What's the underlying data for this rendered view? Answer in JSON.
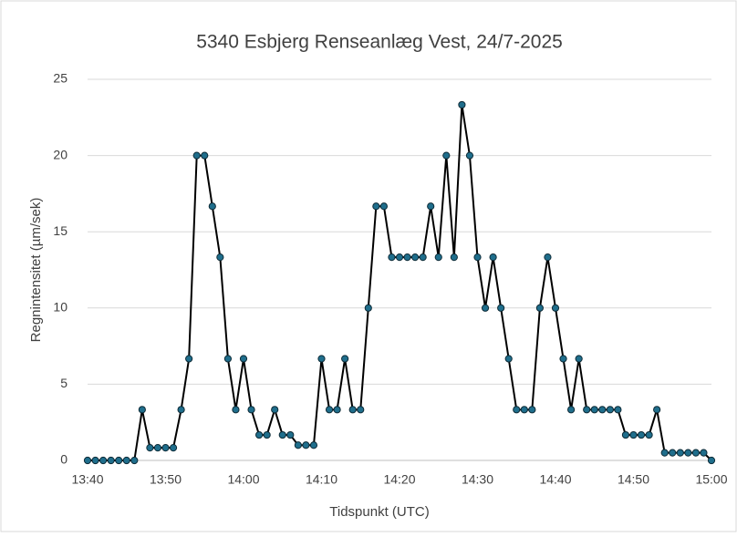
{
  "chart_data": {
    "type": "line",
    "title": "5340 Esbjerg Renseanlæg Vest, 24/7-2025",
    "x_label": "Tidspunkt (UTC)",
    "y_label": "Regnintensitet (µm/sek)",
    "x": [
      "13:40",
      "13:41",
      "13:42",
      "13:43",
      "13:44",
      "13:45",
      "13:46",
      "13:47",
      "13:48",
      "13:49",
      "13:50",
      "13:51",
      "13:52",
      "13:53",
      "13:54",
      "13:55",
      "13:56",
      "13:57",
      "13:58",
      "13:59",
      "14:00",
      "14:01",
      "14:02",
      "14:03",
      "14:04",
      "14:05",
      "14:06",
      "14:07",
      "14:08",
      "14:09",
      "14:10",
      "14:11",
      "14:12",
      "14:13",
      "14:14",
      "14:15",
      "14:16",
      "14:17",
      "14:18",
      "14:19",
      "14:20",
      "14:21",
      "14:22",
      "14:23",
      "14:24",
      "14:25",
      "14:26",
      "14:27",
      "14:28",
      "14:29",
      "14:30",
      "14:31",
      "14:32",
      "14:33",
      "14:34",
      "14:35",
      "14:36",
      "14:37",
      "14:38",
      "14:39",
      "14:40",
      "14:41",
      "14:42",
      "14:43",
      "14:44",
      "14:45",
      "14:46",
      "14:47",
      "14:48",
      "14:49",
      "14:50",
      "14:51",
      "14:52",
      "14:53",
      "14:54",
      "14:55",
      "14:56",
      "14:57",
      "14:58",
      "14:59",
      "15:00"
    ],
    "series": [
      {
        "name": "Regnintensitet",
        "color": "#1f6e8c",
        "values": [
          0,
          0,
          0,
          0,
          0,
          0,
          0,
          3.33,
          0.83,
          0.83,
          0.83,
          0.83,
          3.33,
          6.67,
          20,
          20,
          16.67,
          13.33,
          6.67,
          3.33,
          6.67,
          3.33,
          1.67,
          1.67,
          3.33,
          1.67,
          1.67,
          1,
          1,
          1,
          6.67,
          3.33,
          3.33,
          6.67,
          3.33,
          3.33,
          10,
          16.67,
          16.67,
          13.33,
          13.33,
          13.33,
          13.33,
          13.33,
          16.67,
          13.33,
          20,
          13.33,
          23.33,
          20,
          13.33,
          10,
          13.33,
          10,
          6.67,
          3.33,
          3.33,
          3.33,
          10,
          13.33,
          10,
          6.67,
          3.33,
          6.67,
          3.33,
          3.33,
          3.33,
          3.33,
          3.33,
          1.67,
          1.67,
          1.67,
          1.67,
          3.33,
          0.5,
          0.5,
          0.5,
          0.5,
          0.5,
          0.5,
          0
        ]
      }
    ],
    "xlim": [
      "13:40",
      "15:00"
    ],
    "xticks": [
      "13:40",
      "13:50",
      "14:00",
      "14:10",
      "14:20",
      "14:30",
      "14:40",
      "14:50",
      "15:00"
    ],
    "ylim": [
      0,
      25
    ],
    "yticks": [
      0,
      5,
      10,
      15,
      20,
      25
    ],
    "grid": true
  }
}
